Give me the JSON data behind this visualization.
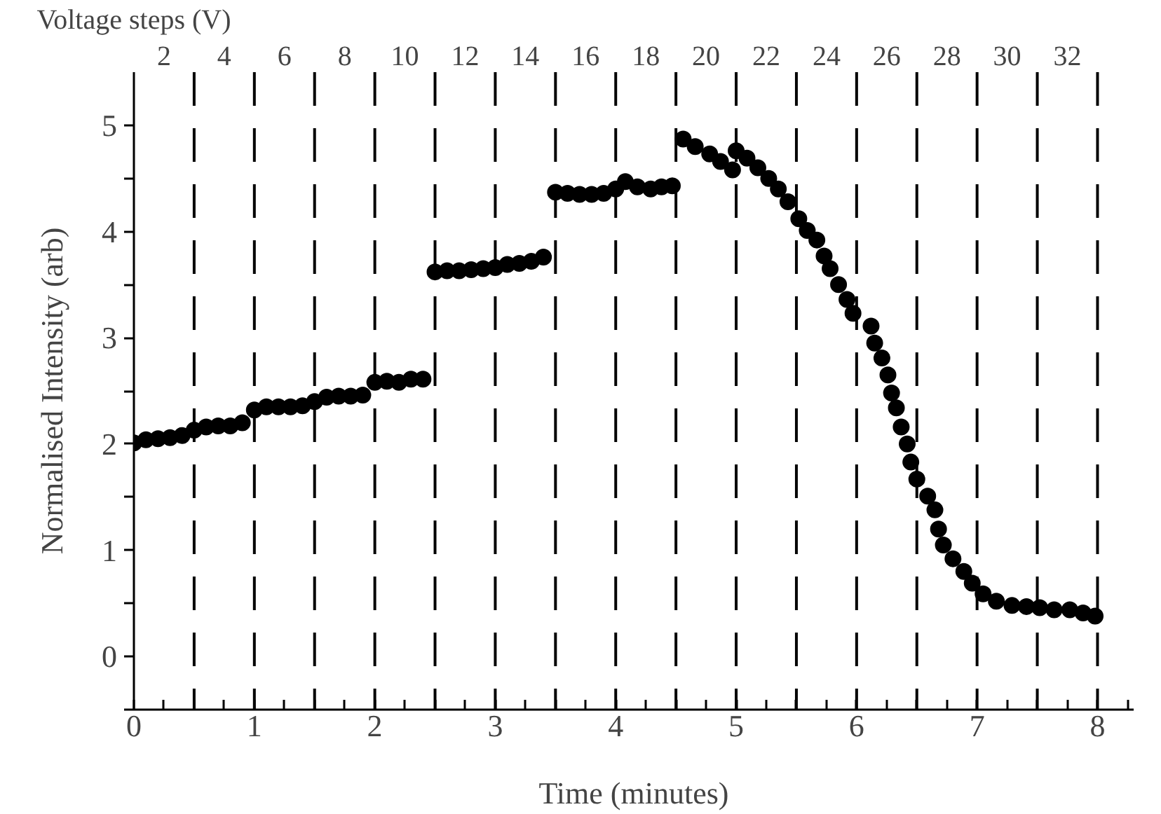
{
  "chart_data": {
    "type": "scatter",
    "xlabel": "Time (minutes)",
    "ylabel": "Normalised Intensity (arb)",
    "x2label": "Voltage steps (V)",
    "x": [
      0,
      0.1,
      0.2,
      0.3,
      0.4,
      0.5,
      0.6,
      0.7,
      0.8,
      0.9,
      1.0,
      1.1,
      1.2,
      1.3,
      1.4,
      1.5,
      1.6,
      1.7,
      1.8,
      1.9,
      2.0,
      2.1,
      2.2,
      2.3,
      2.4,
      2.5,
      2.6,
      2.7,
      2.8,
      2.9,
      3.0,
      3.1,
      3.2,
      3.3,
      3.4,
      3.5,
      3.6,
      3.7,
      3.8,
      3.9,
      4.0,
      4.08,
      4.18,
      4.29,
      4.38,
      4.47,
      4.56,
      4.66,
      4.78,
      4.87,
      4.97,
      5.0,
      5.09,
      5.18,
      5.27,
      5.35,
      5.43,
      5.52,
      5.59,
      5.67,
      5.73,
      5.78,
      5.85,
      5.92,
      5.97,
      6.12,
      6.15,
      6.21,
      6.26,
      6.29,
      6.33,
      6.37,
      6.42,
      6.45,
      6.5,
      6.59,
      6.65,
      6.68,
      6.72,
      6.8,
      6.89,
      6.96,
      7.05,
      7.16,
      7.29,
      7.41,
      7.52,
      7.64,
      7.77,
      7.88,
      7.98
    ],
    "series": [
      {
        "color": "#000000",
        "values": [
          2.01,
          2.04,
          2.05,
          2.06,
          2.08,
          2.13,
          2.16,
          2.17,
          2.17,
          2.2,
          2.32,
          2.35,
          2.35,
          2.35,
          2.36,
          2.4,
          2.44,
          2.45,
          2.45,
          2.46,
          2.58,
          2.59,
          2.58,
          2.61,
          2.61,
          3.62,
          3.63,
          3.63,
          3.64,
          3.65,
          3.66,
          3.69,
          3.7,
          3.72,
          3.76,
          4.37,
          4.36,
          4.35,
          4.35,
          4.36,
          4.4,
          4.47,
          4.42,
          4.4,
          4.42,
          4.43,
          4.87,
          4.8,
          4.73,
          4.66,
          4.58,
          4.76,
          4.69,
          4.6,
          4.5,
          4.4,
          4.28,
          4.12,
          4.01,
          3.92,
          3.77,
          3.65,
          3.5,
          3.36,
          3.23,
          3.11,
          2.95,
          2.81,
          2.65,
          2.48,
          2.34,
          2.16,
          2.0,
          1.83,
          1.67,
          1.51,
          1.38,
          1.2,
          1.05,
          0.92,
          0.8,
          0.69,
          0.59,
          0.52,
          0.48,
          0.47,
          0.46,
          0.44,
          0.44,
          0.41,
          0.38
        ]
      }
    ],
    "marker": "circle",
    "xlim": [
      0,
      8.3
    ],
    "ylim": [
      -0.5,
      5.5
    ],
    "xticks": [
      0,
      {
        "value": 0.25,
        "label": null
      },
      {
        "value": 0.5,
        "label": null
      },
      {
        "value": 0.75,
        "label": null
      },
      1,
      {
        "value": 1.25,
        "label": null
      },
      {
        "value": 1.5,
        "label": null
      },
      {
        "value": 1.75,
        "label": null
      },
      2,
      {
        "value": 2.25,
        "label": null
      },
      {
        "value": 2.5,
        "label": null
      },
      {
        "value": 2.75,
        "label": null
      },
      3,
      {
        "value": 3.25,
        "label": null
      },
      {
        "value": 3.5,
        "label": null
      },
      {
        "value": 3.75,
        "label": null
      },
      4,
      {
        "value": 4.25,
        "label": null
      },
      {
        "value": 4.5,
        "label": null
      },
      {
        "value": 4.75,
        "label": null
      },
      5,
      {
        "value": 5.25,
        "label": null
      },
      {
        "value": 5.5,
        "label": null
      },
      {
        "value": 5.75,
        "label": null
      },
      6,
      {
        "value": 6.25,
        "label": null
      },
      {
        "value": 6.5,
        "label": null
      },
      {
        "value": 6.75,
        "label": null
      },
      7,
      {
        "value": 7.25,
        "label": null
      },
      {
        "value": 7.5,
        "label": null
      },
      {
        "value": 7.75,
        "label": null
      },
      8,
      {
        "value": 8.25,
        "label": null
      }
    ],
    "yticks": [
      {
        "value": -0.5,
        "label": null
      },
      0,
      {
        "value": 0.5,
        "label": null
      },
      1,
      {
        "value": 1.5,
        "label": null
      },
      2,
      {
        "value": 2.5,
        "label": null
      },
      3,
      {
        "value": 3.5,
        "label": null
      },
      4,
      {
        "value": 4.5,
        "label": null
      },
      5
    ],
    "x2lim": [
      1,
      34.2
    ],
    "x2ticks": [
      2,
      4,
      6,
      8,
      10,
      12,
      14,
      16,
      18,
      20,
      22,
      24,
      26,
      28,
      30,
      32
    ],
    "ref_lines": [
      {
        "axis": "x",
        "value": 0.5,
        "line_style": "dashed"
      },
      {
        "axis": "x",
        "value": 1,
        "line_style": "dashed"
      },
      {
        "axis": "x",
        "value": 1.5,
        "line_style": "dashed"
      },
      {
        "axis": "x",
        "value": 2,
        "line_style": "dashed"
      },
      {
        "axis": "x",
        "value": 2.5,
        "line_style": "dashed"
      },
      {
        "axis": "x",
        "value": 3,
        "line_style": "dashed"
      },
      {
        "axis": "x",
        "value": 3.5,
        "line_style": "dashed"
      },
      {
        "axis": "x",
        "value": 4,
        "line_style": "dashed"
      },
      {
        "axis": "x",
        "value": 4.5,
        "line_style": "dashed"
      },
      {
        "axis": "x",
        "value": 5,
        "line_style": "dashed"
      },
      {
        "axis": "x",
        "value": 5.5,
        "line_style": "dashed"
      },
      {
        "axis": "x",
        "value": 6,
        "line_style": "dashed"
      },
      {
        "axis": "x",
        "value": 6.5,
        "line_style": "dashed"
      },
      {
        "axis": "x",
        "value": 7,
        "line_style": "dashed"
      },
      {
        "axis": "x",
        "value": 7.5,
        "line_style": "dashed"
      },
      {
        "axis": "x",
        "value": 8,
        "line_style": "dashed"
      }
    ]
  }
}
